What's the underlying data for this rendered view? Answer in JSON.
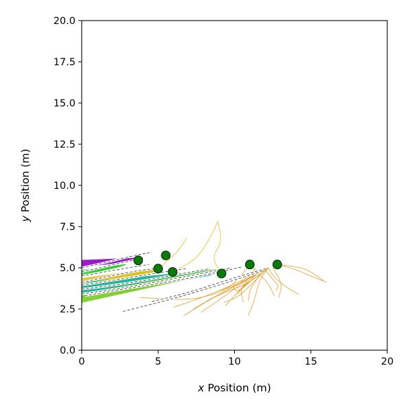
{
  "chart_data": {
    "type": "scatter",
    "title": "",
    "xlabel_var": "x",
    "xlabel_rest": " Position (m)",
    "ylabel_var": "y",
    "ylabel_rest": " Position (m)",
    "xlim": [
      0,
      20
    ],
    "ylim": [
      0,
      20
    ],
    "x_ticks": [
      0,
      5,
      10,
      15,
      20
    ],
    "x_tick_labels": [
      "0",
      "5",
      "10",
      "15",
      "20"
    ],
    "y_ticks": [
      0,
      2.5,
      5,
      7.5,
      10,
      12.5,
      15,
      17.5,
      20
    ],
    "y_tick_labels": [
      "0.0",
      "2.5",
      "5.0",
      "7.5",
      "10.0",
      "12.5",
      "15.0",
      "17.5",
      "20.0"
    ],
    "grid": false,
    "colors": {
      "marker_fill": "#0a7a0a",
      "marker_edge": "#000000",
      "purple": "#9a16c8",
      "green": "#33cc33",
      "yellow": "#ddc028",
      "teal": "#19b49a",
      "lime": "#7ccc2a",
      "orange": "#e0a030",
      "dashed": "#333333"
    },
    "markers": [
      {
        "x": 3.7,
        "y": 5.45
      },
      {
        "x": 5.5,
        "y": 5.75
      },
      {
        "x": 5.0,
        "y": 4.95
      },
      {
        "x": 5.95,
        "y": 4.75
      },
      {
        "x": 9.15,
        "y": 4.65
      },
      {
        "x": 11.0,
        "y": 5.2
      },
      {
        "x": 12.8,
        "y": 5.2
      }
    ],
    "bundles": [
      {
        "color": "purple",
        "from": [
          [
            0,
            5.05
          ],
          [
            0,
            5.45
          ]
        ],
        "to": [
          [
            3.7,
            5.45
          ],
          [
            4.0,
            5.6
          ]
        ],
        "count": 16
      },
      {
        "color": "green",
        "from": [
          [
            0,
            4.55
          ],
          [
            0,
            4.85
          ]
        ],
        "to": [
          [
            2.4,
            5.05
          ],
          [
            2.9,
            5.2
          ]
        ],
        "count": 10
      },
      {
        "color": "yellow",
        "from": [
          [
            0,
            3.55
          ],
          [
            0,
            4.35
          ]
        ],
        "to": [
          [
            4.6,
            4.7
          ],
          [
            5.1,
            5.0
          ]
        ],
        "count": 18
      },
      {
        "color": "teal",
        "from": [
          [
            0,
            3.2
          ],
          [
            0,
            4.1
          ]
        ],
        "to": [
          [
            8.4,
            4.55
          ],
          [
            9.6,
            4.95
          ]
        ],
        "count": 24
      },
      {
        "color": "lime",
        "from": [
          [
            0,
            2.9
          ],
          [
            0,
            3.4
          ]
        ],
        "to": [
          [
            7.8,
            4.5
          ],
          [
            8.8,
            4.9
          ]
        ],
        "count": 14
      }
    ],
    "dashed_paths": [
      [
        [
          0,
          5.0
        ],
        [
          1.5,
          5.3
        ],
        [
          3.2,
          5.7
        ],
        [
          4.6,
          5.95
        ]
      ],
      [
        [
          0,
          4.75
        ],
        [
          1.2,
          5.0
        ],
        [
          2.6,
          5.3
        ],
        [
          3.9,
          5.55
        ]
      ],
      [
        [
          0,
          4.5
        ],
        [
          1.5,
          4.75
        ],
        [
          3.0,
          5.0
        ],
        [
          4.4,
          5.2
        ]
      ],
      [
        [
          0,
          4.1
        ],
        [
          1.8,
          4.5
        ],
        [
          3.8,
          4.85
        ],
        [
          5.2,
          5.0
        ]
      ],
      [
        [
          0,
          3.95
        ],
        [
          2.5,
          4.3
        ],
        [
          5.0,
          4.7
        ],
        [
          6.8,
          4.95
        ]
      ],
      [
        [
          0,
          3.7
        ],
        [
          3.0,
          4.05
        ],
        [
          6.0,
          4.55
        ],
        [
          8.4,
          4.95
        ]
      ],
      [
        [
          0,
          3.4
        ],
        [
          3.5,
          3.9
        ],
        [
          7.0,
          4.5
        ],
        [
          9.8,
          5.0
        ]
      ],
      [
        [
          0.2,
          3.3
        ],
        [
          3.0,
          3.75
        ],
        [
          7.0,
          4.35
        ],
        [
          10.5,
          5.05
        ]
      ],
      [
        [
          4.6,
          2.95
        ],
        [
          7.0,
          3.5
        ],
        [
          9.5,
          4.25
        ],
        [
          12.0,
          4.95
        ]
      ],
      [
        [
          2.7,
          2.35
        ],
        [
          5.5,
          3.0
        ],
        [
          8.5,
          3.8
        ],
        [
          11.8,
          4.8
        ]
      ]
    ],
    "thin_paths": [
      {
        "color": "yellow",
        "points": [
          [
            5.0,
            4.95
          ],
          [
            5.6,
            5.4
          ],
          [
            6.2,
            5.9
          ],
          [
            6.9,
            6.8
          ]
        ]
      },
      {
        "color": "yellow",
        "points": [
          [
            9.15,
            4.65
          ],
          [
            8.5,
            5.6
          ],
          [
            9.2,
            6.6
          ],
          [
            8.9,
            7.8
          ]
        ]
      },
      {
        "color": "yellow",
        "points": [
          [
            5.95,
            4.75
          ],
          [
            7.5,
            5.5
          ],
          [
            8.4,
            6.8
          ],
          [
            8.9,
            7.8
          ]
        ]
      }
    ],
    "orange_paths": [
      [
        [
          12.8,
          5.2
        ],
        [
          13.8,
          5.1
        ],
        [
          14.8,
          4.9
        ],
        [
          16.0,
          4.1
        ]
      ],
      [
        [
          12.8,
          5.2
        ],
        [
          14.0,
          4.9
        ],
        [
          15.0,
          4.5
        ],
        [
          15.8,
          4.2
        ]
      ],
      [
        [
          12.2,
          5.0
        ],
        [
          12.6,
          4.4
        ],
        [
          13.4,
          3.8
        ],
        [
          14.2,
          3.4
        ]
      ],
      [
        [
          12.2,
          5.0
        ],
        [
          11.6,
          4.2
        ],
        [
          11.3,
          3.0
        ],
        [
          10.9,
          2.1
        ]
      ],
      [
        [
          12.2,
          5.0
        ],
        [
          11.2,
          4.3
        ],
        [
          10.5,
          3.8
        ],
        [
          10.2,
          3.4
        ]
      ],
      [
        [
          12.2,
          5.0
        ],
        [
          10.5,
          4.1
        ],
        [
          8.6,
          3.2
        ],
        [
          6.7,
          2.1
        ]
      ],
      [
        [
          12.2,
          5.0
        ],
        [
          10.8,
          4.3
        ],
        [
          9.4,
          3.3
        ],
        [
          7.8,
          2.3
        ]
      ],
      [
        [
          12.2,
          5.0
        ],
        [
          10.2,
          4.1
        ],
        [
          8.2,
          3.3
        ],
        [
          6.0,
          2.6
        ]
      ],
      [
        [
          12.2,
          5.0
        ],
        [
          10.0,
          3.9
        ],
        [
          7.5,
          3.0
        ],
        [
          3.8,
          3.2
        ]
      ],
      [
        [
          11.8,
          4.9
        ],
        [
          11.0,
          4.3
        ],
        [
          10.3,
          3.6
        ],
        [
          9.4,
          2.7
        ]
      ],
      [
        [
          11.8,
          4.9
        ],
        [
          11.4,
          4.2
        ],
        [
          11.0,
          3.7
        ],
        [
          10.9,
          3.0
        ]
      ],
      [
        [
          11.0,
          5.2
        ],
        [
          11.6,
          4.6
        ],
        [
          12.2,
          4.1
        ],
        [
          12.6,
          3.3
        ]
      ],
      [
        [
          11.0,
          5.2
        ],
        [
          10.4,
          4.5
        ],
        [
          9.8,
          3.9
        ],
        [
          9.1,
          3.6
        ]
      ],
      [
        [
          11.4,
          5.0
        ],
        [
          10.6,
          4.2
        ],
        [
          9.0,
          3.4
        ],
        [
          7.3,
          2.5
        ]
      ],
      [
        [
          12.0,
          4.9
        ],
        [
          12.5,
          4.3
        ],
        [
          12.9,
          3.9
        ],
        [
          12.7,
          3.6
        ]
      ],
      [
        [
          11.6,
          4.8
        ],
        [
          10.9,
          4.0
        ],
        [
          10.1,
          3.5
        ],
        [
          9.9,
          3.9
        ]
      ],
      [
        [
          12.2,
          5.0
        ],
        [
          11.0,
          3.9
        ],
        [
          10.2,
          3.2
        ],
        [
          9.3,
          2.9
        ]
      ],
      [
        [
          12.2,
          5.0
        ],
        [
          10.8,
          4.0
        ],
        [
          9.6,
          3.6
        ],
        [
          8.2,
          3.0
        ]
      ],
      [
        [
          12.5,
          5.0
        ],
        [
          12.9,
          4.4
        ],
        [
          13.1,
          3.9
        ],
        [
          12.9,
          3.2
        ]
      ],
      [
        [
          11.2,
          4.7
        ],
        [
          10.6,
          4.0
        ],
        [
          10.4,
          3.5
        ],
        [
          10.6,
          2.9
        ]
      ]
    ]
  }
}
